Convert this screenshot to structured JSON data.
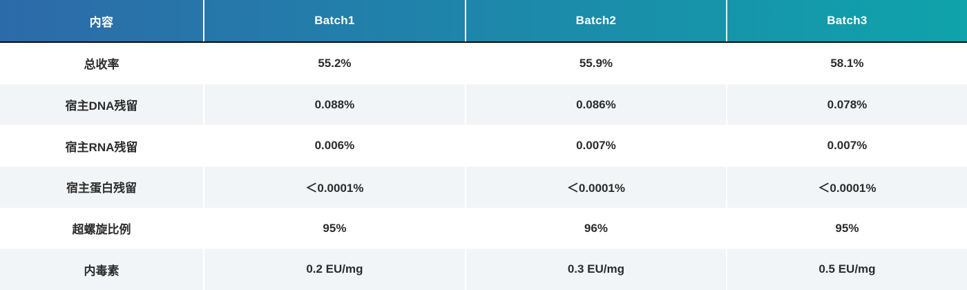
{
  "chart_data": {
    "type": "table",
    "title": "",
    "columns": [
      "内容",
      "Batch1",
      "Batch2",
      "Batch3"
    ],
    "rows": [
      {
        "label": "总收率",
        "values": [
          "55.2%",
          "55.9%",
          "58.1%"
        ]
      },
      {
        "label": "宿主DNA残留",
        "values": [
          "0.088%",
          "0.086%",
          "0.078%"
        ]
      },
      {
        "label": "宿主RNA残留",
        "values": [
          "0.006%",
          "0.007%",
          "0.007%"
        ]
      },
      {
        "label": "宿主蛋白残留",
        "values": [
          "＜0.0001%",
          "＜0.0001%",
          "＜0.0001%"
        ]
      },
      {
        "label": "超螺旋比例",
        "values": [
          "95%",
          "96%",
          "95%"
        ]
      },
      {
        "label": "内毒素",
        "values": [
          "0.2 EU/mg",
          "0.3 EU/mg",
          "0.5 EU/mg"
        ]
      }
    ]
  },
  "table": {
    "header": [
      "内容",
      "Batch1",
      "Batch2",
      "Batch3"
    ],
    "rows": [
      {
        "label": "总收率",
        "values": [
          "55.2%",
          "55.9%",
          "58.1%"
        ]
      },
      {
        "label": "宿主DNA残留",
        "values": [
          "0.088%",
          "0.086%",
          "0.078%"
        ]
      },
      {
        "label": "宿主RNA残留",
        "values": [
          "0.006%",
          "0.007%",
          "0.007%"
        ]
      },
      {
        "label": "宿主蛋白残留",
        "values": [
          "＜0.0001%",
          "＜0.0001%",
          "＜0.0001%"
        ]
      },
      {
        "label": "超螺旋比例",
        "values": [
          "95%",
          "96%",
          "95%"
        ]
      },
      {
        "label": "内毒素",
        "values": [
          "0.2 EU/mg",
          "0.3 EU/mg",
          "0.5 EU/mg"
        ]
      }
    ]
  },
  "colors": {
    "header_gradient_start": "#2d6aa9",
    "header_gradient_end": "#0fa3ab",
    "row_alternate_background": "#f2f5f8",
    "column_separator": "#ffffff",
    "header_underline": "#0b0b0b",
    "header_text": "#ffffff",
    "body_text": "#2b2b2b"
  }
}
